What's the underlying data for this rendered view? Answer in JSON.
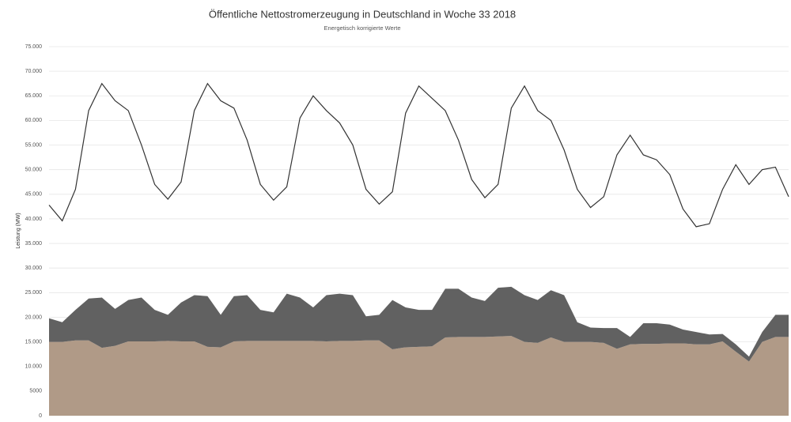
{
  "chart_data": {
    "type": "area",
    "title": "Öffentliche Nettostromerzeugung in Deutschland in Woche 33 2018",
    "subtitle": "Energetisch korrigierte Werte",
    "y_label": "Leistung (MW)",
    "ylim": [
      0,
      75000
    ],
    "yticks": [
      0,
      5000,
      {
        "value": 10000,
        "label": "10.000"
      },
      {
        "value": 15000,
        "label": "15.000"
      },
      {
        "value": 20000,
        "label": "20.000"
      },
      {
        "value": 25000,
        "label": "25.000"
      },
      {
        "value": 30000,
        "label": "30.000"
      },
      {
        "value": 35000,
        "label": "35.000"
      },
      {
        "value": 40000,
        "label": "40.000"
      },
      {
        "value": 45000,
        "label": "45.000"
      },
      {
        "value": 50000,
        "label": "50.000"
      },
      {
        "value": 55000,
        "label": "55.000"
      },
      {
        "value": 60000,
        "label": "60.000"
      },
      {
        "value": 65000,
        "label": "65.000"
      },
      {
        "value": 70000,
        "label": "70.000"
      },
      {
        "value": 75000,
        "label": "75.000"
      }
    ],
    "grid": true,
    "series": [
      {
        "kind": "stacked-area",
        "color": "#b09a87",
        "values": [
          15000,
          15000,
          15300,
          15300,
          13800,
          14200,
          15100,
          15100,
          15100,
          15200,
          15100,
          15100,
          14000,
          13900,
          15100,
          15200,
          15200,
          15200,
          15200,
          15200,
          15200,
          15100,
          15200,
          15200,
          15300,
          15300,
          13500,
          13900,
          14000,
          14100,
          15900,
          16000,
          16000,
          16000,
          16100,
          16200,
          15000,
          14800,
          15900,
          15000,
          15000,
          15000,
          14800,
          13600,
          14500,
          14600,
          14600,
          14700,
          14700,
          14500,
          14500,
          15100,
          13000,
          11000,
          15000,
          16000,
          16000
        ]
      },
      {
        "kind": "stacked-area",
        "color": "#616161",
        "values": [
          4800,
          4000,
          6200,
          8500,
          10200,
          7500,
          8400,
          8900,
          6400,
          5300,
          7900,
          9400,
          10300,
          6600,
          9200,
          9300,
          6300,
          5800,
          9600,
          8800,
          6800,
          9400,
          9600,
          9300,
          4900,
          5200,
          10000,
          8100,
          7500,
          7400,
          9900,
          9800,
          8000,
          7300,
          9900,
          10000,
          9500,
          8700,
          9600,
          9500,
          4000,
          2900,
          3000,
          4200,
          1500,
          4200,
          4200,
          3800,
          2800,
          2500,
          2000,
          1500,
          1500,
          1000,
          2000,
          4500,
          4500
        ]
      },
      {
        "kind": "line",
        "color": "#333333",
        "values": [
          42800,
          39600,
          46000,
          62000,
          67500,
          64000,
          62000,
          55000,
          47000,
          44000,
          47500,
          62000,
          67500,
          64000,
          62500,
          56000,
          47000,
          43800,
          46500,
          60500,
          65000,
          62000,
          59500,
          55000,
          46000,
          43000,
          45500,
          61500,
          67000,
          64500,
          62000,
          56000,
          48000,
          44300,
          47000,
          62500,
          67000,
          62000,
          60000,
          54000,
          46000,
          42300,
          44500,
          53000,
          57000,
          53000,
          52000,
          49000,
          42000,
          38400,
          39000,
          46000,
          51000,
          47000,
          50000,
          50500,
          44500
        ]
      }
    ]
  }
}
